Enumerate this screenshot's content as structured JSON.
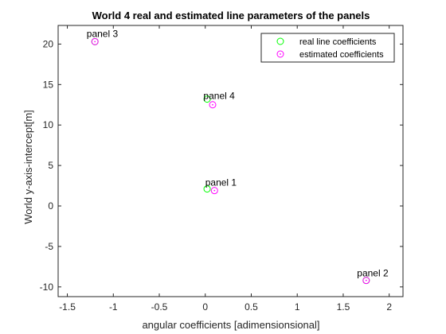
{
  "chart_data": {
    "type": "scatter",
    "title": "World 4 real and estimated line parameters of the panels",
    "xlabel": "angular coefficients [adimensionsional]",
    "ylabel": "World y-axis-intercept[m]",
    "xlim": [
      -1.6,
      2.15
    ],
    "ylim": [
      -11.2,
      22.3
    ],
    "xticks": [
      -1.5,
      -1,
      -0.5,
      0,
      0.5,
      1,
      1.5,
      2
    ],
    "xtick_labels": [
      "-1.5",
      "-1",
      "-0.5",
      "0",
      "0.5",
      "1",
      "1.5",
      "2"
    ],
    "yticks": [
      -10,
      -5,
      0,
      5,
      10,
      15,
      20
    ],
    "ytick_labels": [
      "-10",
      "-5",
      "0",
      "5",
      "10",
      "15",
      "20"
    ],
    "grid": false,
    "legend_position": "top-right",
    "series": [
      {
        "name": "real line coefficients",
        "color": "#00ff00",
        "marker": "circle",
        "points": [
          {
            "x": 0.02,
            "y": 2.1
          },
          {
            "x": 1.75,
            "y": -9.2
          },
          {
            "x": -1.2,
            "y": 20.3
          },
          {
            "x": 0.02,
            "y": 13.2
          }
        ]
      },
      {
        "name": "estimated coefficients",
        "color": "#ff00ff",
        "marker": "circle-dot",
        "points": [
          {
            "x": 0.1,
            "y": 1.9
          },
          {
            "x": 1.75,
            "y": -9.2
          },
          {
            "x": -1.2,
            "y": 20.3
          },
          {
            "x": 0.08,
            "y": 12.5
          }
        ]
      }
    ],
    "annotations": [
      {
        "text": "panel 1",
        "x": 0.0,
        "y": 2.5
      },
      {
        "text": "panel 2",
        "x": 1.65,
        "y": -8.7
      },
      {
        "text": "panel 3",
        "x": -1.29,
        "y": 20.9
      },
      {
        "text": "panel 4",
        "x": -0.02,
        "y": 13.2
      }
    ]
  }
}
